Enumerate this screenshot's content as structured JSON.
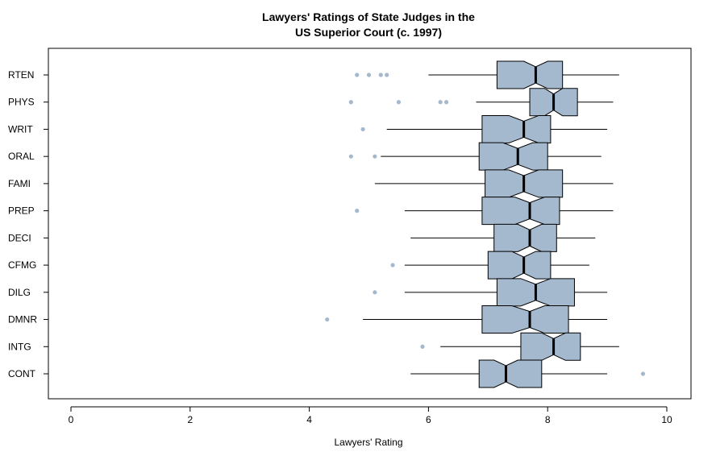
{
  "chart_data": {
    "type": "boxplot",
    "orientation": "horizontal",
    "notched": true,
    "title_line1": "Lawyers' Ratings of State Judges in the",
    "title_line2": "US Superior Court (c. 1997)",
    "xlabel": "Lawyers' Rating",
    "ylabel": "",
    "xlim": [
      0,
      10
    ],
    "xticks": [
      "0",
      "2",
      "4",
      "6",
      "8",
      "10"
    ],
    "grid": false,
    "box_color": "#A4B8CE",
    "outlier_color": "#A4B8CE",
    "categories": [
      "RTEN",
      "PHYS",
      "WRIT",
      "ORAL",
      "FAMI",
      "PREP",
      "DECI",
      "CFMG",
      "DILG",
      "DMNR",
      "INTG",
      "CONT"
    ],
    "series": [
      {
        "category": "RTEN",
        "whisker_low": 6.0,
        "q1": 7.15,
        "median": 7.8,
        "q3": 8.25,
        "whisker_high": 9.2,
        "notch_low": 7.6,
        "notch_high": 8.0,
        "outliers": [
          4.8,
          5.0,
          5.2,
          5.3
        ]
      },
      {
        "category": "PHYS",
        "whisker_low": 6.8,
        "q1": 7.7,
        "median": 8.1,
        "q3": 8.5,
        "whisker_high": 9.1,
        "notch_low": 7.95,
        "notch_high": 8.25,
        "outliers": [
          4.7,
          5.5,
          6.2,
          6.3
        ]
      },
      {
        "category": "WRIT",
        "whisker_low": 5.3,
        "q1": 6.9,
        "median": 7.6,
        "q3": 8.05,
        "whisker_high": 9.0,
        "notch_low": 7.35,
        "notch_high": 7.85,
        "outliers": [
          4.9
        ]
      },
      {
        "category": "ORAL",
        "whisker_low": 5.2,
        "q1": 6.85,
        "median": 7.5,
        "q3": 8.0,
        "whisker_high": 8.9,
        "notch_low": 7.25,
        "notch_high": 7.75,
        "outliers": [
          4.7,
          5.1
        ]
      },
      {
        "category": "FAMI",
        "whisker_low": 5.1,
        "q1": 6.95,
        "median": 7.6,
        "q3": 8.25,
        "whisker_high": 9.1,
        "notch_low": 7.35,
        "notch_high": 7.85,
        "outliers": []
      },
      {
        "category": "PREP",
        "whisker_low": 5.6,
        "q1": 6.9,
        "median": 7.7,
        "q3": 8.2,
        "whisker_high": 9.1,
        "notch_low": 7.45,
        "notch_high": 7.95,
        "outliers": [
          4.8
        ]
      },
      {
        "category": "DECI",
        "whisker_low": 5.7,
        "q1": 7.1,
        "median": 7.7,
        "q3": 8.15,
        "whisker_high": 8.8,
        "notch_low": 7.5,
        "notch_high": 7.9,
        "outliers": []
      },
      {
        "category": "CFMG",
        "whisker_low": 5.6,
        "q1": 7.0,
        "median": 7.6,
        "q3": 8.05,
        "whisker_high": 8.7,
        "notch_low": 7.4,
        "notch_high": 7.8,
        "outliers": [
          5.4
        ]
      },
      {
        "category": "DILG",
        "whisker_low": 5.6,
        "q1": 7.15,
        "median": 7.8,
        "q3": 8.45,
        "whisker_high": 9.0,
        "notch_low": 7.55,
        "notch_high": 8.05,
        "outliers": [
          5.1
        ]
      },
      {
        "category": "DMNR",
        "whisker_low": 4.9,
        "q1": 6.9,
        "median": 7.7,
        "q3": 8.35,
        "whisker_high": 9.0,
        "notch_low": 7.4,
        "notch_high": 7.95,
        "outliers": [
          4.3
        ]
      },
      {
        "category": "INTG",
        "whisker_low": 6.2,
        "q1": 7.55,
        "median": 8.1,
        "q3": 8.55,
        "whisker_high": 9.2,
        "notch_low": 7.9,
        "notch_high": 8.3,
        "outliers": [
          5.9
        ]
      },
      {
        "category": "CONT",
        "whisker_low": 5.7,
        "q1": 6.85,
        "median": 7.3,
        "q3": 7.9,
        "whisker_high": 9.0,
        "notch_low": 7.1,
        "notch_high": 7.5,
        "outliers": [
          9.6
        ]
      }
    ]
  }
}
